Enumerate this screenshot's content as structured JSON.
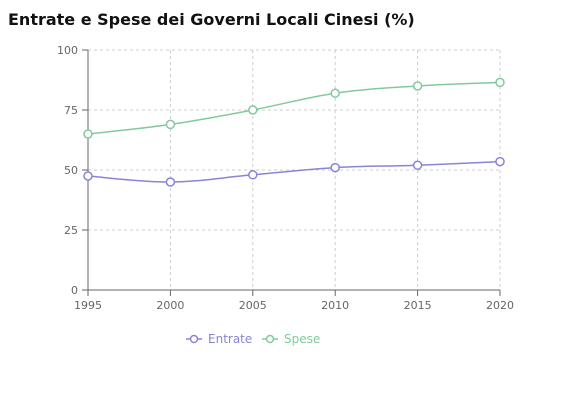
{
  "chart_data": {
    "type": "line",
    "title": "Entrate e Spese dei Governi Locali Cinesi (%)",
    "x": [
      "1995",
      "2000",
      "2005",
      "2010",
      "2015",
      "2020"
    ],
    "series": [
      {
        "name": "Entrate",
        "values": [
          47.5,
          45,
          48,
          51,
          52,
          53.5
        ],
        "color": "#8884d8"
      },
      {
        "name": "Spese",
        "values": [
          65,
          69,
          75,
          82,
          85,
          86.5
        ],
        "color": "#82ca9d"
      }
    ],
    "yticks": [
      "0",
      "25",
      "50",
      "75",
      "100"
    ],
    "ylim": [
      0,
      100
    ],
    "grid": true,
    "legend": "bottom-center",
    "axis_color": "#666666",
    "grid_color": "#cccccc"
  }
}
